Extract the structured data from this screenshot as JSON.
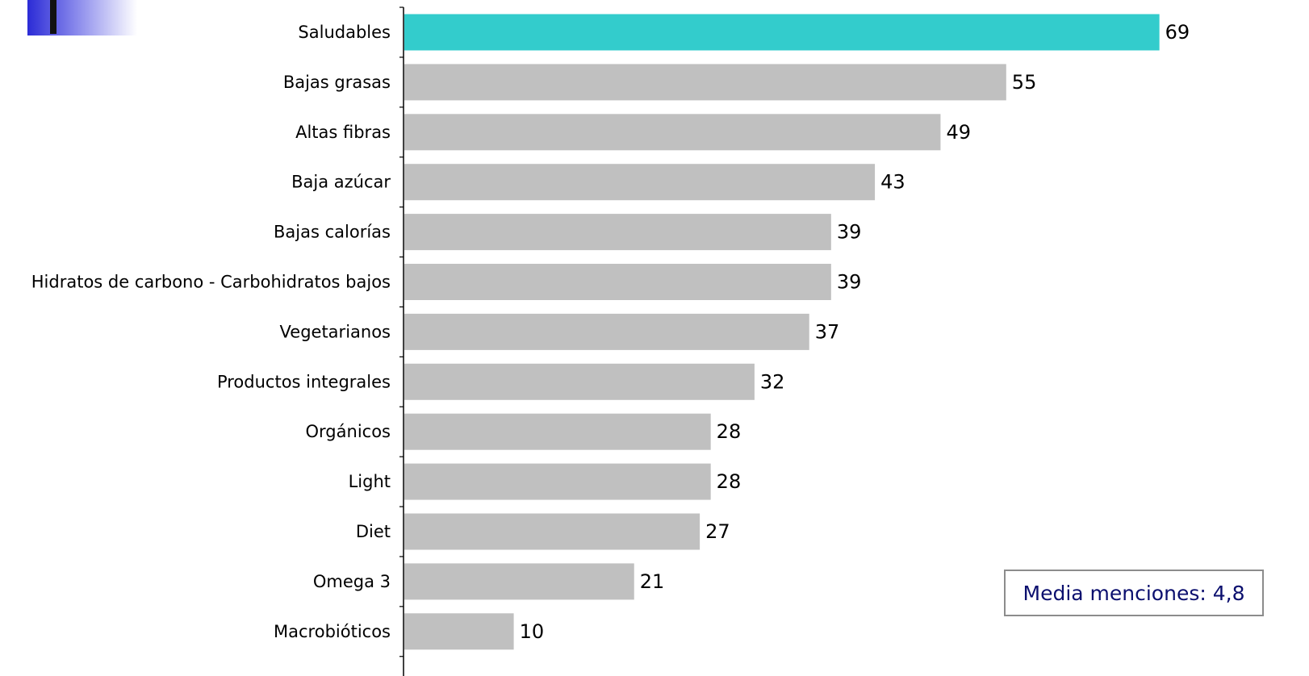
{
  "chart_data": {
    "type": "bar",
    "orientation": "horizontal",
    "categories": [
      "Saludables",
      "Bajas grasas",
      "Altas fibras",
      "Baja azúcar",
      "Bajas calorías",
      "Hidratos de carbono - Carbohidratos bajos",
      "Vegetarianos",
      "Productos integrales",
      "Orgánicos",
      "Light",
      "Diet",
      "Omega 3",
      "Macrobióticos"
    ],
    "values": [
      69,
      55,
      49,
      43,
      39,
      39,
      37,
      32,
      28,
      28,
      27,
      21,
      10
    ],
    "highlight_index": 0,
    "colors": {
      "highlight": "#33CCCC",
      "default": "#C0C0C0",
      "axis": "#000000",
      "note_text": "#0B0F6E",
      "note_border": "#8C8C8C"
    },
    "title": "",
    "xlabel": "",
    "ylabel": "",
    "data_labels": true,
    "grid": false,
    "annotation": "Media menciones: 4,8"
  }
}
